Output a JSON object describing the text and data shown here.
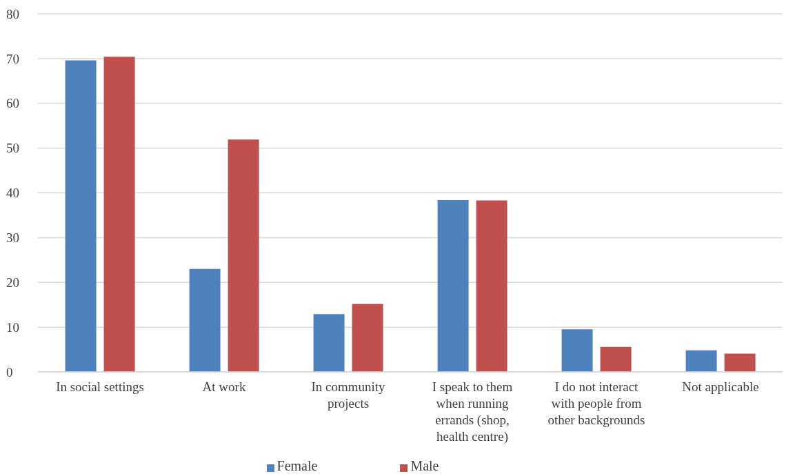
{
  "chart_data": {
    "type": "bar",
    "categories": [
      "In social settings",
      "At work",
      "In community projects",
      "I speak to them when running errands (shop, health centre)",
      "I do not interact with people from other backgrounds",
      "Not applicable"
    ],
    "series": [
      {
        "name": "Female",
        "color": "#4f81bd",
        "values": [
          69.6,
          23.0,
          12.9,
          38.4,
          9.5,
          4.8
        ]
      },
      {
        "name": "Male",
        "color": "#c0504d",
        "values": [
          70.4,
          51.9,
          15.2,
          38.3,
          5.6,
          4.1
        ]
      }
    ],
    "ylim": [
      0,
      80
    ],
    "yticks": [
      0,
      10,
      20,
      30,
      40,
      50,
      60,
      70,
      80
    ],
    "grid": "y",
    "legend": "bottom"
  }
}
